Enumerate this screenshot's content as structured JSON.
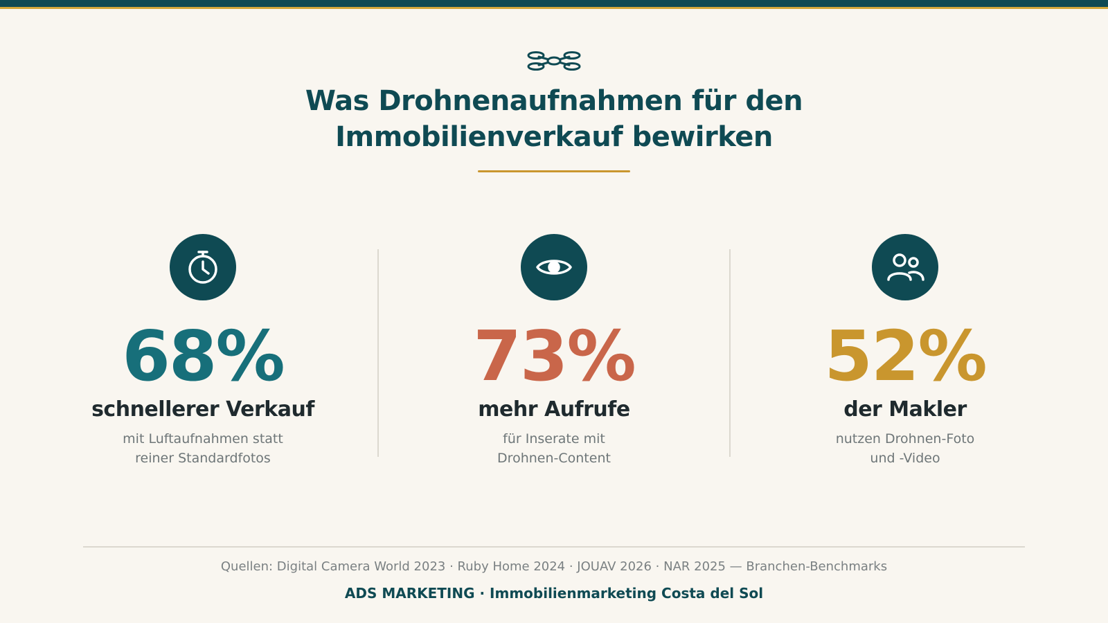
{
  "header": {
    "icon": "drone-icon",
    "title_line1": "Was Drohnenaufnahmen für den",
    "title_line2": "Immobilienverkauf bewirken"
  },
  "colors": {
    "primary": "#0f4a53",
    "teal": "#176f7a",
    "coral": "#c9664a",
    "gold": "#c9962e",
    "background": "#f9f6f0"
  },
  "stats": [
    {
      "icon": "stopwatch-icon",
      "value": "68%",
      "label": "schnellerer Verkauf",
      "desc_line1": "mit Luftaufnahmen statt",
      "desc_line2": "reiner Standardfotos"
    },
    {
      "icon": "eye-icon",
      "value": "73%",
      "label": "mehr Aufrufe",
      "desc_line1": "für Inserate mit",
      "desc_line2": "Drohnen-Content"
    },
    {
      "icon": "users-icon",
      "value": "52%",
      "label": "der Makler",
      "desc_line1": "nutzen Drohnen-Foto",
      "desc_line2": "und -Video"
    }
  ],
  "footer": {
    "sources": "Quellen: Digital Camera World 2023 · Ruby Home 2024 · JOUAV 2026 · NAR 2025 — Branchen-Benchmarks",
    "brand": "ADS MARKETING · Immobilienmarketing Costa del Sol"
  }
}
